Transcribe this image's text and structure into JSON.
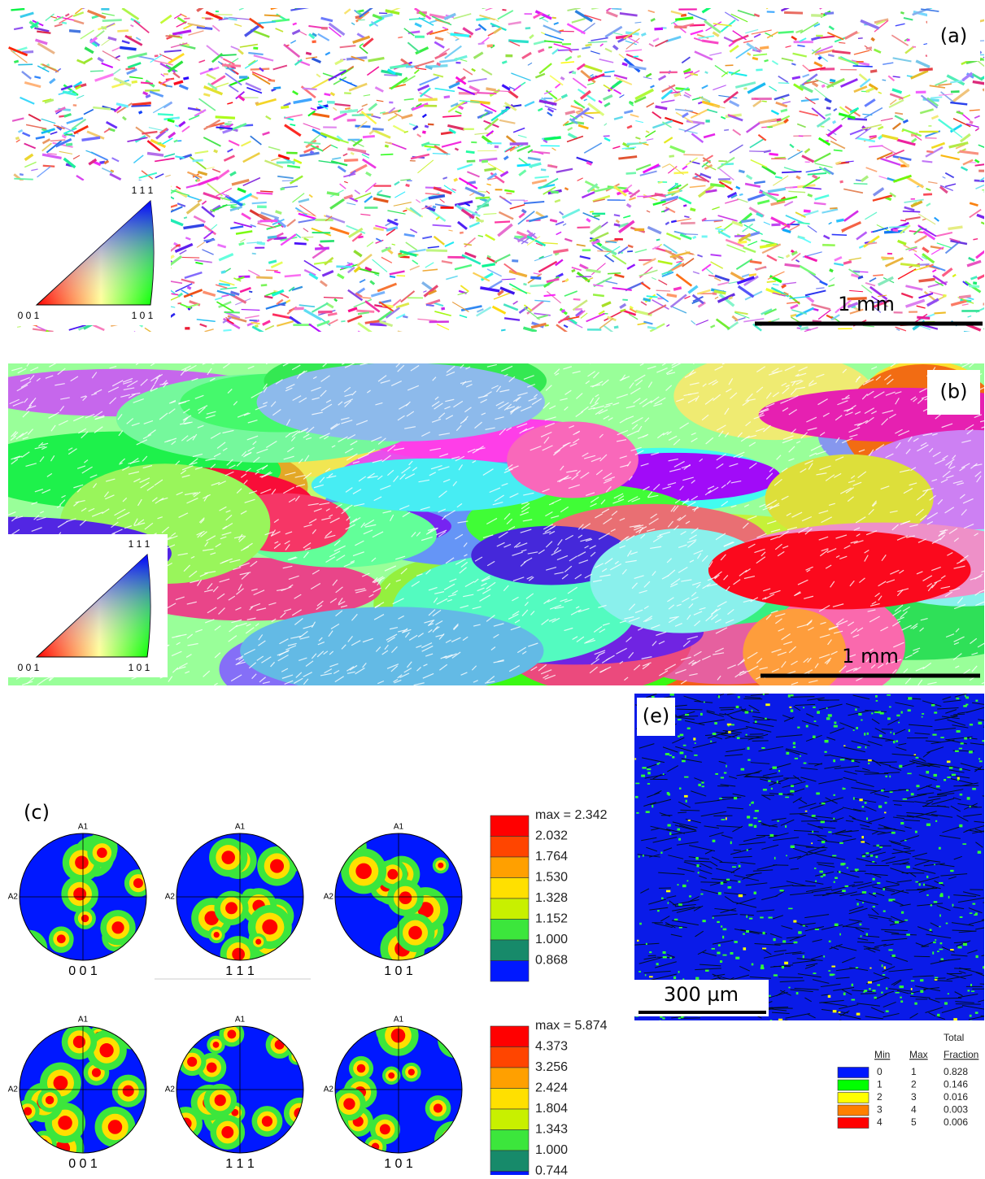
{
  "panels": {
    "a": {
      "label": "(a)",
      "scale_bar": "1 mm",
      "triangle": {
        "top": "1 1 1",
        "left": "0 0 1",
        "right": "1 0 1"
      }
    },
    "b": {
      "label": "(b)",
      "scale_bar": "1 mm",
      "triangle": {
        "top": "1 1 1",
        "left": "0 0 1",
        "right": "1 0 1"
      }
    },
    "c": {
      "label": "(c)",
      "axis_top": "A1",
      "axis_left": "A2",
      "rows": [
        {
          "figures": [
            "0 0 1",
            "1 1 1",
            "1 0 1"
          ],
          "legend_max": "max = 2.342",
          "levels": [
            "2.032",
            "1.764",
            "1.530",
            "1.328",
            "1.152",
            "1.000",
            "0.868"
          ]
        },
        {
          "figures": [
            "0 0 1",
            "1 1 1",
            "1 0 1"
          ],
          "legend_max": "max = 5.874",
          "levels": [
            "4.373",
            "3.256",
            "2.424",
            "1.804",
            "1.343",
            "1.000",
            "0.744"
          ]
        }
      ]
    },
    "e": {
      "label": "(e)",
      "scale_bar": "300 µm",
      "table": {
        "header_top": "Total",
        "headers": [
          "Min",
          "Max",
          "Fraction"
        ],
        "rows": [
          [
            "0",
            "1",
            "0.828"
          ],
          [
            "1",
            "2",
            "0.146"
          ],
          [
            "2",
            "3",
            "0.016"
          ],
          [
            "3",
            "4",
            "0.003"
          ],
          [
            "4",
            "5",
            "0.006"
          ]
        ]
      }
    }
  }
}
